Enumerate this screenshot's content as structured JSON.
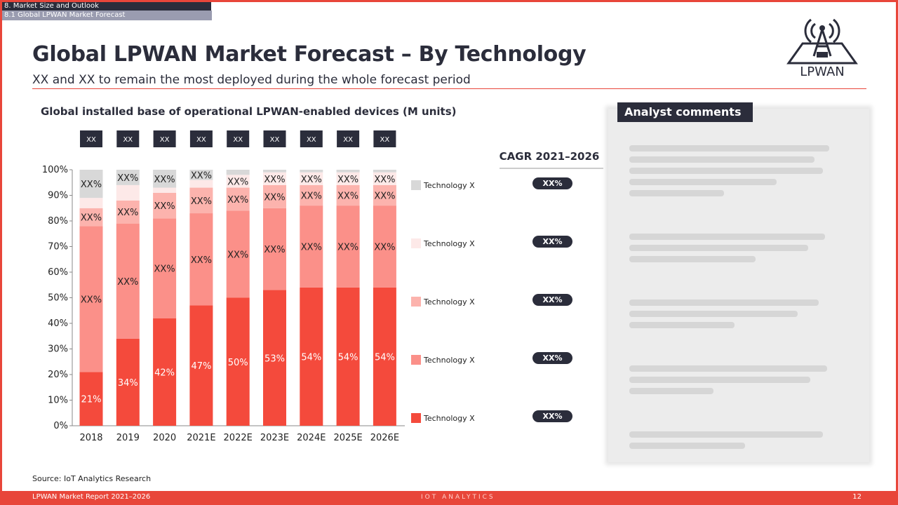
{
  "breadcrumb": {
    "section": "8. Market Size and Outlook",
    "subsection": "8.1 Global LPWAN Market Forecast"
  },
  "header": {
    "title": "Global LPWAN Market Forecast – By Technology",
    "subtitle": "XX and XX to remain the most deployed during the whole forecast period",
    "logo_text": "LPWAN"
  },
  "colors": {
    "accent": "#e8463a",
    "dark": "#2b2d3b",
    "tech1": "#f44a3c",
    "tech2": "#fb9089",
    "tech3": "#fcb3ad",
    "tech4": "#fde9e8",
    "tech5": "#d8d8d8"
  },
  "chart_data": {
    "type": "bar",
    "stacked": true,
    "title": "Global installed base of operational LPWAN-enabled devices (M units)",
    "categories": [
      "2018",
      "2019",
      "2020",
      "2021E",
      "2022E",
      "2023E",
      "2024E",
      "2025E",
      "2026E"
    ],
    "totals_labels": [
      "XX",
      "XX",
      "XX",
      "XX",
      "XX",
      "XX",
      "XX",
      "XX",
      "XX"
    ],
    "ylim": [
      0,
      100
    ],
    "yticks": [
      "0%",
      "10%",
      "20%",
      "30%",
      "40%",
      "50%",
      "60%",
      "70%",
      "80%",
      "90%",
      "100%"
    ],
    "series": [
      {
        "name": "Technology X",
        "values": [
          21,
          34,
          42,
          47,
          50,
          53,
          54,
          54,
          54
        ],
        "labels": [
          "21%",
          "34%",
          "42%",
          "47%",
          "50%",
          "53%",
          "54%",
          "54%",
          "54%"
        ]
      },
      {
        "name": "Technology X",
        "values": [
          57,
          45,
          39,
          36,
          34,
          32,
          32,
          32,
          32
        ],
        "labels": [
          "XX%",
          "XX%",
          "XX%",
          "XX%",
          "XX%",
          "XX%",
          "XX%",
          "XX%",
          "XX%"
        ]
      },
      {
        "name": "Technology X",
        "values": [
          7,
          9,
          10,
          10,
          9,
          9,
          8,
          8,
          8
        ],
        "labels": [
          "XX%",
          "XX%",
          "XX%",
          "XX%",
          "XX%",
          "XX%",
          "XX%",
          "XX%",
          "XX%"
        ]
      },
      {
        "name": "Technology X",
        "values": [
          4,
          6,
          2,
          3,
          5,
          5,
          5,
          5,
          5
        ],
        "labels": [
          "",
          "",
          "",
          "",
          "XX%",
          "XX%",
          "XX%",
          "XX%",
          "XX%"
        ]
      },
      {
        "name": "Technology X",
        "values": [
          11,
          6,
          7,
          4,
          2,
          1,
          1,
          1,
          1
        ],
        "labels": [
          "XX%",
          "XX%",
          "XX%",
          "XX%",
          "",
          "",
          "",
          "",
          ""
        ]
      }
    ],
    "legend_placement": "right",
    "cagr": {
      "title": "CAGR 2021–2026",
      "values": [
        "XX%",
        "XX%",
        "XX%",
        "XX%",
        "XX%"
      ]
    }
  },
  "analyst": {
    "title": "Analyst comments"
  },
  "source": "Source:  IoT Analytics Research",
  "footer": {
    "report": "LPWAN Market Report 2021–2026",
    "brand": "IOT ANALYTICS",
    "page": "12"
  }
}
